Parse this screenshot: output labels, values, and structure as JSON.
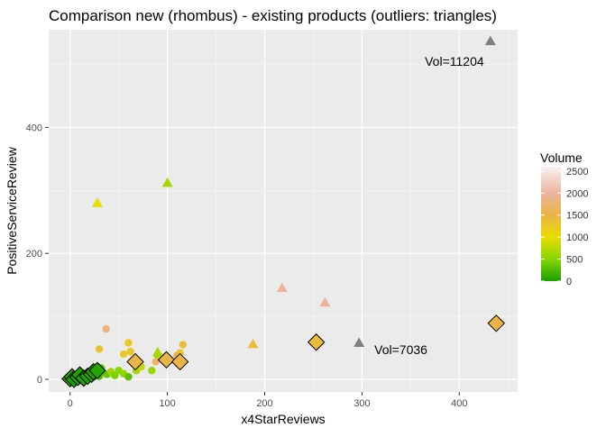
{
  "chart_data": {
    "type": "scatter",
    "title": "Comparison new (rhombus) - existing products (outliers: triangles)",
    "xlabel": "x4StarReviews",
    "ylabel": "PositiveServiceReview",
    "xlim": [
      -22,
      460
    ],
    "ylim": [
      -20,
      555
    ],
    "x_ticks": [
      0,
      100,
      200,
      300,
      400
    ],
    "y_ticks": [
      0,
      200,
      400
    ],
    "grid": true,
    "legend": {
      "title": "Volume",
      "position": "right",
      "ticks": [
        0,
        500,
        1000,
        1500,
        2000,
        2500
      ],
      "scale": [
        {
          "v": 0,
          "color": "#1aa000"
        },
        {
          "v": 500,
          "color": "#88d400"
        },
        {
          "v": 1000,
          "color": "#e8dc00"
        },
        {
          "v": 1500,
          "color": "#ebb445"
        },
        {
          "v": 2000,
          "color": "#ebb49c"
        },
        {
          "v": 2600,
          "color": "#f6f2f2"
        }
      ]
    },
    "annotations": [
      {
        "text": "Vol=11204",
        "x": 395,
        "y": 505
      },
      {
        "text": "Vol=7036",
        "x": 340,
        "y": 47
      }
    ],
    "series": [
      {
        "shape": "circle",
        "points": [
          {
            "x": 2,
            "y": 2,
            "volume": 20
          },
          {
            "x": 4,
            "y": 5,
            "volume": 40
          },
          {
            "x": 6,
            "y": 3,
            "volume": 60
          },
          {
            "x": 8,
            "y": 7,
            "volume": 30
          },
          {
            "x": 10,
            "y": 1,
            "volume": 80
          },
          {
            "x": 12,
            "y": 4,
            "volume": 50
          },
          {
            "x": 14,
            "y": 8,
            "volume": 100
          },
          {
            "x": 16,
            "y": 2,
            "volume": 70
          },
          {
            "x": 18,
            "y": 10,
            "volume": 120
          },
          {
            "x": 20,
            "y": 6,
            "volume": 90
          },
          {
            "x": 22,
            "y": 12,
            "volume": 150
          },
          {
            "x": 24,
            "y": 4,
            "volume": 200
          },
          {
            "x": 26,
            "y": 9,
            "volume": 140
          },
          {
            "x": 28,
            "y": 15,
            "volume": 180
          },
          {
            "x": 30,
            "y": 5,
            "volume": 250
          },
          {
            "x": 32,
            "y": 18,
            "volume": 300
          },
          {
            "x": 34,
            "y": 10,
            "volume": 400
          },
          {
            "x": 38,
            "y": 8,
            "volume": 350
          },
          {
            "x": 42,
            "y": 12,
            "volume": 600
          },
          {
            "x": 46,
            "y": 6,
            "volume": 450
          },
          {
            "x": 50,
            "y": 14,
            "volume": 500
          },
          {
            "x": 55,
            "y": 9,
            "volume": 550
          },
          {
            "x": 60,
            "y": 4,
            "volume": 300
          },
          {
            "x": 68,
            "y": 14,
            "volume": 650
          },
          {
            "x": 73,
            "y": 20,
            "volume": 800
          },
          {
            "x": 84,
            "y": 14,
            "volume": 600
          },
          {
            "x": 90,
            "y": 38,
            "volume": 650
          },
          {
            "x": 95,
            "y": 35,
            "volume": 950
          },
          {
            "x": 100,
            "y": 30,
            "volume": 1200
          },
          {
            "x": 110,
            "y": 38,
            "volume": 1450
          },
          {
            "x": 113,
            "y": 42,
            "volume": 1300
          },
          {
            "x": 116,
            "y": 55,
            "volume": 1400
          },
          {
            "x": 30,
            "y": 48,
            "volume": 1350
          },
          {
            "x": 37,
            "y": 80,
            "volume": 1800
          },
          {
            "x": 60,
            "y": 58,
            "volume": 1200
          },
          {
            "x": 62,
            "y": 44,
            "volume": 1300
          },
          {
            "x": 65,
            "y": 25,
            "volume": 1450
          },
          {
            "x": 88,
            "y": 28,
            "volume": 1650
          },
          {
            "x": 55,
            "y": 40,
            "volume": 1250
          }
        ]
      },
      {
        "shape": "triangle",
        "points": [
          {
            "x": 28,
            "y": 280,
            "volume": 1000
          },
          {
            "x": 100,
            "y": 312,
            "volume": 650
          },
          {
            "x": 90,
            "y": 43,
            "volume": 650
          },
          {
            "x": 188,
            "y": 56,
            "volume": 1400
          },
          {
            "x": 218,
            "y": 145,
            "volume": 2000
          },
          {
            "x": 262,
            "y": 122,
            "volume": 2000
          },
          {
            "x": 297,
            "y": 58,
            "volume": 7036
          },
          {
            "x": 432,
            "y": 537,
            "volume": 11204
          }
        ]
      },
      {
        "shape": "diamond",
        "points": [
          {
            "x": 0,
            "y": 1,
            "volume": 10
          },
          {
            "x": 2,
            "y": 4,
            "volume": 15
          },
          {
            "x": 4,
            "y": 0,
            "volume": 20
          },
          {
            "x": 8,
            "y": 3,
            "volume": 25
          },
          {
            "x": 10,
            "y": 7,
            "volume": 30
          },
          {
            "x": 14,
            "y": 2,
            "volume": 35
          },
          {
            "x": 18,
            "y": 5,
            "volume": 40
          },
          {
            "x": 22,
            "y": 8,
            "volume": 45
          },
          {
            "x": 24,
            "y": 12,
            "volume": 50
          },
          {
            "x": 28,
            "y": 14,
            "volume": 55
          },
          {
            "x": 67,
            "y": 28,
            "volume": 1500
          },
          {
            "x": 99,
            "y": 31,
            "volume": 1500
          },
          {
            "x": 113,
            "y": 28,
            "volume": 1500
          },
          {
            "x": 253,
            "y": 59,
            "volume": 1400
          },
          {
            "x": 438,
            "y": 89,
            "volume": 1500
          }
        ]
      }
    ]
  }
}
